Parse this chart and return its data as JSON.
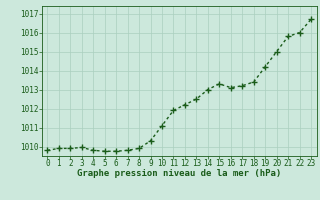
{
  "x": [
    0,
    1,
    2,
    3,
    4,
    5,
    6,
    7,
    8,
    9,
    10,
    11,
    12,
    13,
    14,
    15,
    16,
    17,
    18,
    19,
    20,
    21,
    22,
    23
  ],
  "y": [
    1009.8,
    1009.9,
    1009.9,
    1009.95,
    1009.8,
    1009.75,
    1009.75,
    1009.8,
    1009.9,
    1010.3,
    1011.1,
    1011.9,
    1012.2,
    1012.5,
    1013.0,
    1013.3,
    1013.1,
    1013.2,
    1013.4,
    1014.2,
    1015.0,
    1015.8,
    1016.0,
    1016.7
  ],
  "line_color": "#1a5c1a",
  "marker": "+",
  "marker_size": 4,
  "linewidth": 1.0,
  "bg_color": "#cce8dc",
  "grid_color": "#aacfbf",
  "xlabel": "Graphe pression niveau de la mer (hPa)",
  "xlabel_color": "#1a5c1a",
  "tick_color": "#1a5c1a",
  "ylim": [
    1009.5,
    1017.4
  ],
  "xlim": [
    -0.5,
    23.5
  ],
  "yticks": [
    1010,
    1011,
    1012,
    1013,
    1014,
    1015,
    1016,
    1017
  ],
  "xtick_labels": [
    "0",
    "1",
    "2",
    "3",
    "4",
    "5",
    "6",
    "7",
    "8",
    "9",
    "10",
    "11",
    "12",
    "13",
    "14",
    "15",
    "16",
    "17",
    "18",
    "19",
    "20",
    "21",
    "22",
    "23"
  ],
  "xlabel_fontsize": 6.5,
  "tick_fontsize": 5.5
}
